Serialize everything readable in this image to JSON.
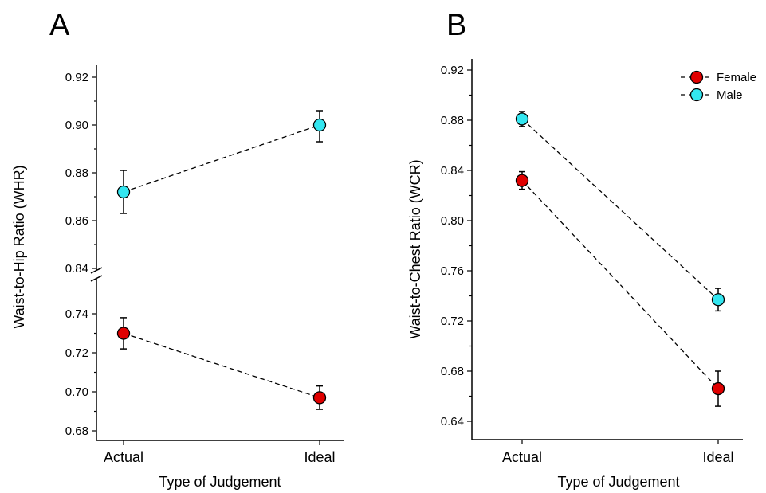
{
  "chart_data": [
    {
      "panel": "A",
      "type": "line",
      "categories": [
        "Actual",
        "Ideal"
      ],
      "xlabel": "Type of Judgement",
      "ylabel": "Waist-to-Hip Ratio (WHR)",
      "broken_axis": true,
      "upper_segment": {
        "ylim": [
          0.84,
          0.92
        ],
        "ticks": [
          "0.84",
          "0.86",
          "0.88",
          "0.90",
          "0.92"
        ]
      },
      "lower_segment": {
        "ylim": [
          0.68,
          0.74
        ],
        "ticks": [
          "0.68",
          "0.70",
          "0.72",
          "0.74"
        ]
      },
      "series": [
        {
          "name": "Female",
          "color": "#e00000",
          "values": [
            0.73,
            0.697
          ],
          "err_low": [
            0.722,
            0.691
          ],
          "err_high": [
            0.738,
            0.703
          ],
          "segment": "lower"
        },
        {
          "name": "Male",
          "color": "#33e6f0",
          "values": [
            0.872,
            0.9
          ],
          "err_low": [
            0.863,
            0.893
          ],
          "err_high": [
            0.881,
            0.906
          ],
          "segment": "upper"
        }
      ]
    },
    {
      "panel": "B",
      "type": "line",
      "categories": [
        "Actual",
        "Ideal"
      ],
      "xlabel": "Type of Judgement",
      "ylabel": "Waist-to-Chest Ratio (WCR)",
      "ylim": [
        0.64,
        0.92
      ],
      "ticks": [
        "0.64",
        "0.68",
        "0.72",
        "0.76",
        "0.80",
        "0.84",
        "0.88",
        "0.92"
      ],
      "legend_position": "top-right",
      "series": [
        {
          "name": "Female",
          "color": "#e00000",
          "values": [
            0.832,
            0.666
          ],
          "err_low": [
            0.825,
            0.652
          ],
          "err_high": [
            0.839,
            0.68
          ]
        },
        {
          "name": "Male",
          "color": "#33e6f0",
          "values": [
            0.881,
            0.737
          ],
          "err_low": [
            0.875,
            0.728
          ],
          "err_high": [
            0.887,
            0.746
          ]
        }
      ]
    }
  ]
}
